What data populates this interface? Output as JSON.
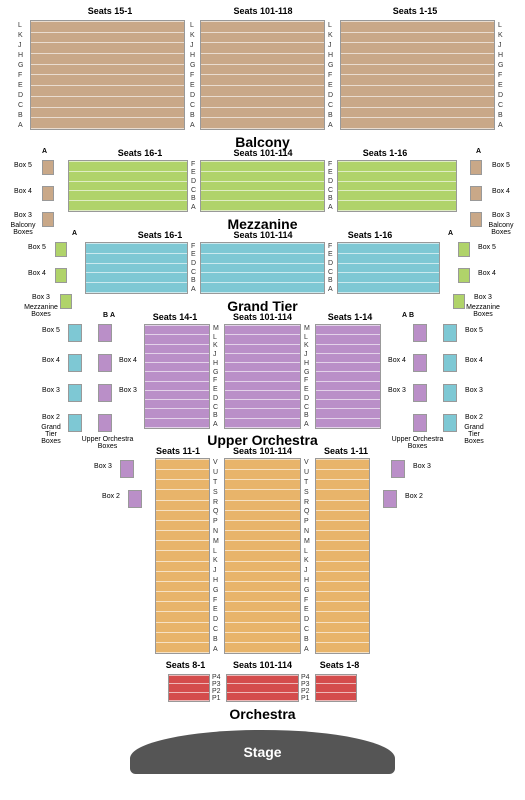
{
  "colors": {
    "balcony": "#c9a888",
    "mezzanine": "#b0d36a",
    "grandtier": "#7ec8d4",
    "upperorch": "#ba8fc8",
    "orchestra": "#e8b46a",
    "pit": "#d44c4c",
    "stage": "#555555"
  },
  "labels": {
    "balcony": "Balcony",
    "mezzanine": "Mezzanine",
    "grandtier": "Grand Tier",
    "upperorch": "Upper Orchestra",
    "orchestra": "Orchestra",
    "stage": "Stage"
  },
  "balcony": {
    "rows": [
      "L",
      "K",
      "J",
      "H",
      "G",
      "F",
      "E",
      "D",
      "C",
      "B",
      "A"
    ],
    "left_seats": "Seats 15-1",
    "center_seats": "Seats 101-118",
    "right_seats": "Seats 1-15"
  },
  "mezzanine": {
    "rows": [
      "F",
      "E",
      "D",
      "C",
      "B",
      "A"
    ],
    "rows_side": [
      "A"
    ],
    "left_seats": "Seats 16-1",
    "center_seats": "Seats 101-114",
    "right_seats": "Seats 1-16",
    "boxes": [
      "Box 5",
      "Box 4",
      "Box 3"
    ],
    "box_caption": "Balcony Boxes"
  },
  "grandtier": {
    "rows": [
      "F",
      "E",
      "D",
      "C",
      "B",
      "A"
    ],
    "rows_side": [
      "A"
    ],
    "left_seats": "Seats 16-1",
    "center_seats": "Seats 101-114",
    "right_seats": "Seats 1-16",
    "boxes": [
      "Box 5",
      "Box 4",
      "Box 3"
    ],
    "box_caption": "Mezzanine Boxes"
  },
  "upperorch": {
    "rows": [
      "M",
      "L",
      "K",
      "J",
      "H",
      "G",
      "F",
      "E",
      "D",
      "C",
      "B",
      "A"
    ],
    "rows_side": [
      "B",
      "A"
    ],
    "left_seats": "Seats 14-1",
    "center_seats": "Seats 101-114",
    "right_seats": "Seats 1-14",
    "boxes": [
      "Box 5",
      "Box 4",
      "Box 3",
      "Box 2"
    ],
    "box_caption_outer": "Grand Tier Boxes",
    "box_caption_inner": "Upper Orchestra Boxes"
  },
  "orchestra": {
    "rows": [
      "V",
      "U",
      "T",
      "S",
      "R",
      "Q",
      "P",
      "N",
      "M",
      "L",
      "K",
      "J",
      "H",
      "G",
      "F",
      "E",
      "D",
      "C",
      "B",
      "A"
    ],
    "left_seats": "Seats 11-1",
    "center_seats": "Seats 101-114",
    "right_seats": "Seats 1-11",
    "boxes": [
      "Box 3",
      "Box 2"
    ]
  },
  "pit": {
    "rows": [
      "P4",
      "P3",
      "P2",
      "P1"
    ],
    "left_seats": "Seats 8-1",
    "center_seats": "Seats 101-114",
    "right_seats": "Seats 1-8"
  }
}
